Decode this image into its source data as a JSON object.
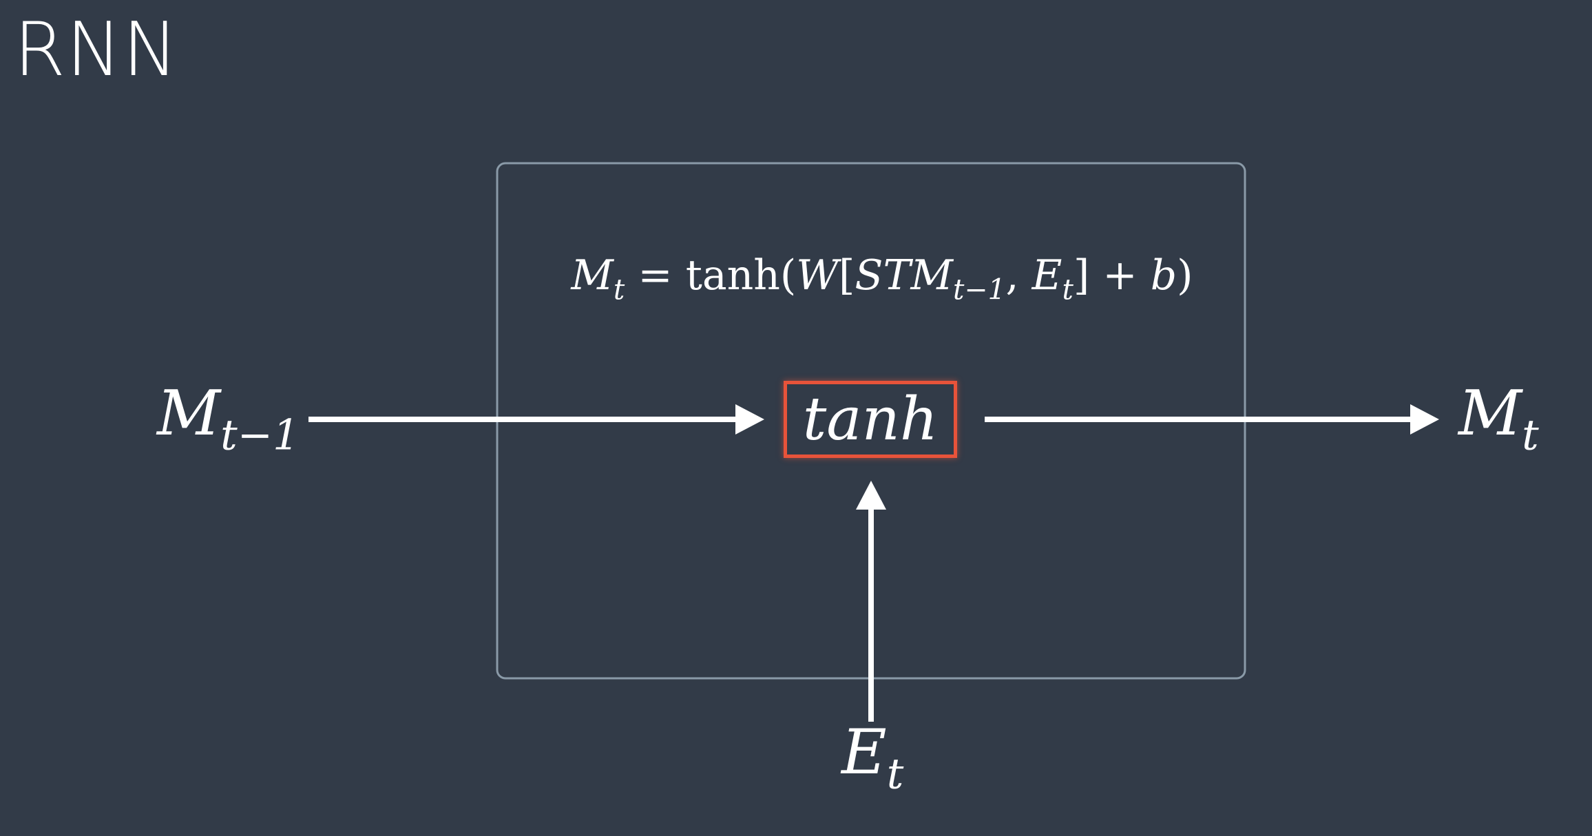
{
  "slide": {
    "title": "RNN"
  },
  "diagram": {
    "equation": {
      "lhs": "M",
      "lhs_sub": "t",
      "equals": "=",
      "func": "tanh",
      "open": "(",
      "weight": "W",
      "bracket_open": "[",
      "stm": "STM",
      "stm_sub": "t−1",
      "comma": ",",
      "e": "E",
      "e_sub": "t",
      "bracket_close": "]",
      "plus": "+",
      "bias": "b",
      "close": ")"
    },
    "input_memory": {
      "symbol": "M",
      "sub": "t−1"
    },
    "output_memory": {
      "symbol": "M",
      "sub": "t"
    },
    "input_embedding": {
      "symbol": "E",
      "sub": "t"
    },
    "activation": {
      "label": "tanh",
      "border_color": "#e8533a"
    },
    "colors": {
      "background": "#323b48",
      "cell_border": "#8a9aa8",
      "arrow": "#ffffff"
    }
  }
}
